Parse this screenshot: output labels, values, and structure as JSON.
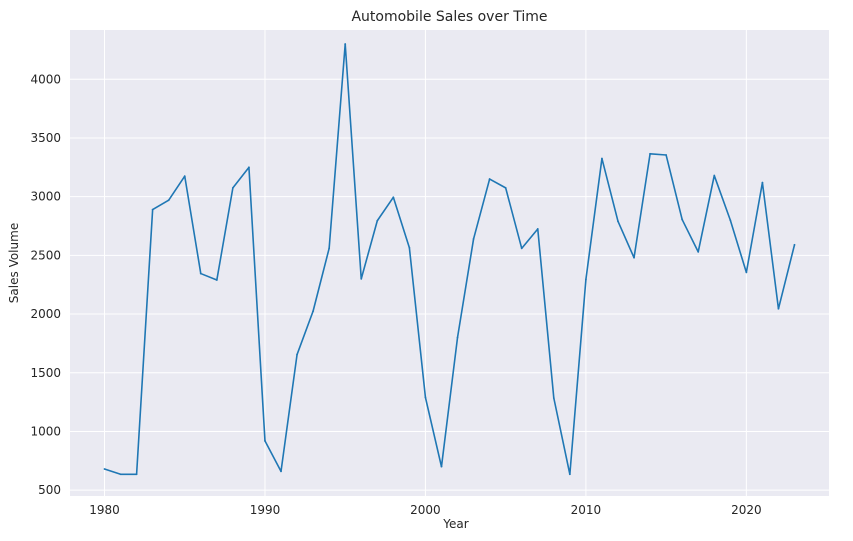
{
  "chart_data": {
    "type": "line",
    "title": "Automobile Sales over Time",
    "xlabel": "Year",
    "ylabel": "Sales Volume",
    "xlim": [
      1977.85,
      2025.15
    ],
    "ylim": [
      450,
      4420
    ],
    "xticks": [
      1980,
      1990,
      2000,
      2010,
      2020
    ],
    "yticks": [
      500,
      1000,
      1500,
      2000,
      2500,
      3000,
      3500,
      4000
    ],
    "grid": true,
    "legend": "none",
    "line_color": "#1f77b4",
    "background_color": "#eaeaf2",
    "series": [
      {
        "x": [
          1980,
          1981,
          1982,
          1983,
          1984,
          1985,
          1986,
          1987,
          1988,
          1989,
          1990,
          1991,
          1992,
          1993,
          1994,
          1995,
          1996,
          1997,
          1998,
          1999,
          2000,
          2001,
          2002,
          2003,
          2004,
          2005,
          2006,
          2007,
          2008,
          2009,
          2010,
          2011,
          2012,
          2013,
          2014,
          2015,
          2016,
          2017,
          2018,
          2019,
          2020,
          2021,
          2022,
          2023
        ],
        "y": [
          680,
          635,
          635,
          2890,
          2970,
          3175,
          2345,
          2290,
          3075,
          3250,
          920,
          660,
          1655,
          2025,
          2560,
          4300,
          2300,
          2795,
          2995,
          2565,
          1290,
          700,
          1800,
          2640,
          3150,
          3075,
          2560,
          2725,
          1285,
          635,
          2295,
          3325,
          2790,
          2480,
          3365,
          3355,
          2805,
          2530,
          3180,
          2800,
          2355,
          3120,
          2045,
          2590
        ]
      }
    ]
  }
}
